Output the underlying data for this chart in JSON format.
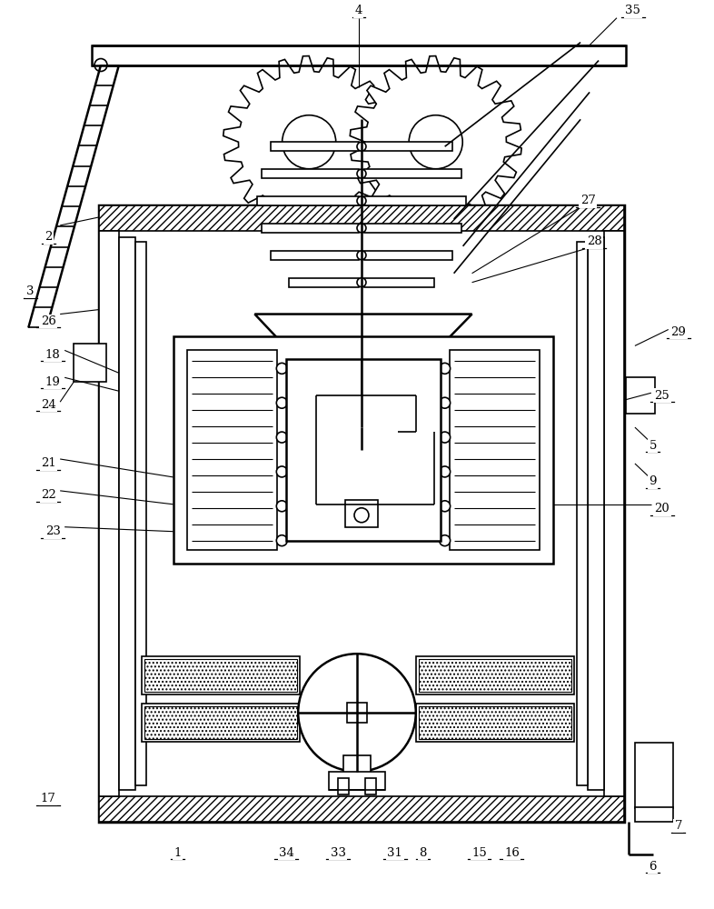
{
  "bg_color": "#ffffff",
  "line_color": "#000000",
  "fig_width": 7.86,
  "fig_height": 10.0
}
